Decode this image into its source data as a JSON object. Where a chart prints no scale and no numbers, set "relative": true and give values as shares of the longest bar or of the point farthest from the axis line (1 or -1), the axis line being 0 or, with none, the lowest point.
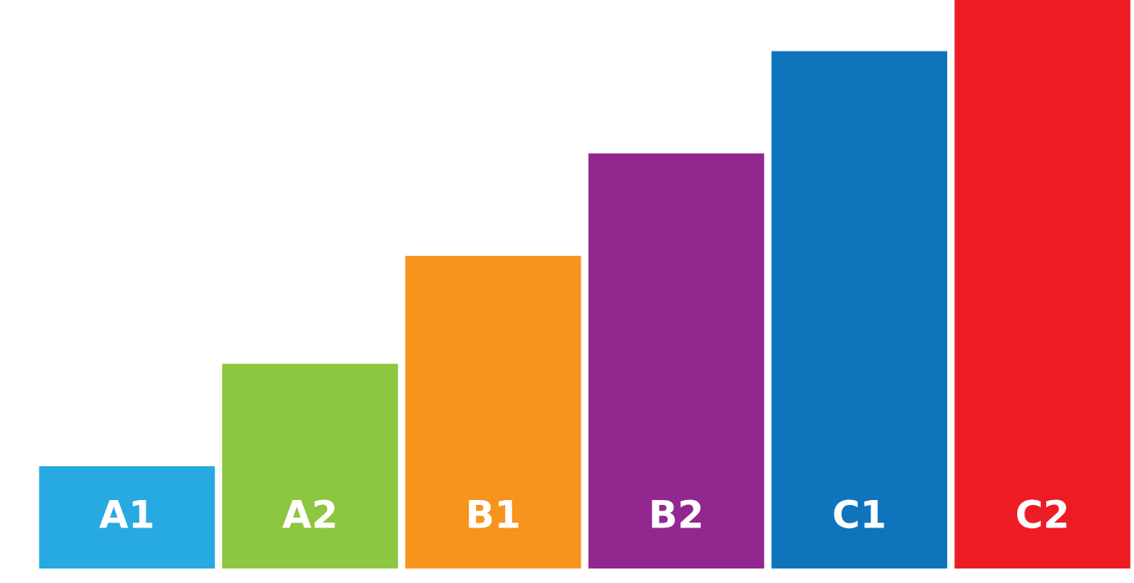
{
  "chart_data": {
    "type": "bar",
    "relative": true,
    "categories": [
      "A1",
      "A2",
      "B1",
      "B2",
      "C1",
      "C2"
    ],
    "values": [
      0.18,
      0.36,
      0.55,
      0.73,
      0.91,
      1.0
    ],
    "colors": [
      "#27aae1",
      "#8dc63f",
      "#f7941d",
      "#92278f",
      "#1074bc",
      "#ed1c24"
    ],
    "legend": false
  }
}
